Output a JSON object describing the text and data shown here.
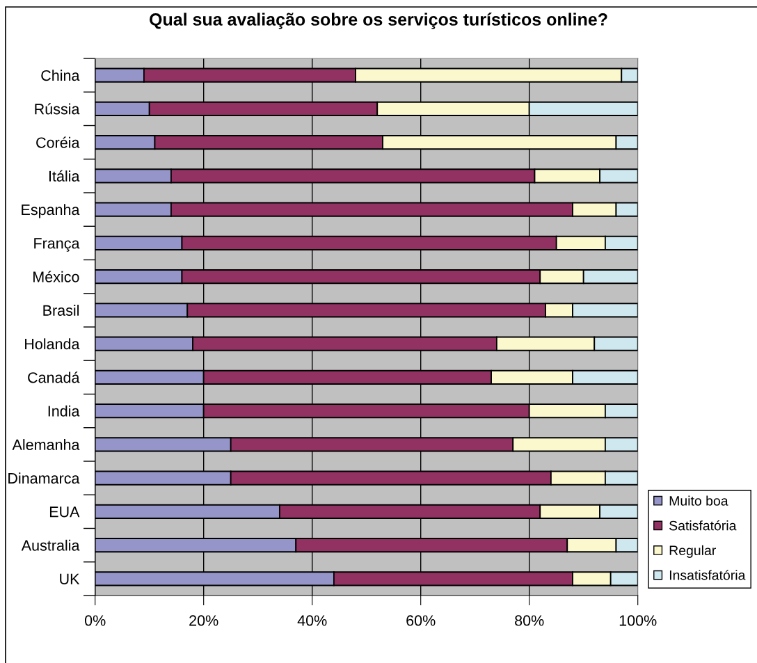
{
  "chart_data": {
    "type": "bar",
    "orientation": "horizontal",
    "stacked": true,
    "title": "Qual sua avaliação sobre os serviços turísticos online?",
    "categories": [
      "China",
      "Rússia",
      "Coréia",
      "Itália",
      "Espanha",
      "França",
      "México",
      "Brasil",
      "Holanda",
      "Canadá",
      "India",
      "Alemanha",
      "Dinamarca",
      "EUA",
      "Australia",
      "UK"
    ],
    "series": [
      {
        "name": "Muito boa",
        "color": "#9595c9",
        "values": [
          9,
          10,
          11,
          14,
          14,
          16,
          16,
          17,
          18,
          20,
          20,
          25,
          25,
          34,
          37,
          44
        ]
      },
      {
        "name": "Satisfatória",
        "color": "#923262",
        "values": [
          39,
          42,
          42,
          67,
          74,
          69,
          66,
          66,
          56,
          53,
          60,
          52,
          59,
          48,
          50,
          44
        ]
      },
      {
        "name": "Regular",
        "color": "#fbf8cd",
        "values": [
          49,
          28,
          43,
          12,
          8,
          9,
          8,
          5,
          18,
          15,
          14,
          17,
          10,
          11,
          9,
          7
        ]
      },
      {
        "name": "Insatisfatória",
        "color": "#cfe8ef",
        "values": [
          3,
          20,
          4,
          7,
          4,
          6,
          10,
          12,
          8,
          12,
          6,
          6,
          6,
          7,
          4,
          5
        ]
      }
    ],
    "xlim": [
      0,
      100
    ],
    "xticks": [
      {
        "value": 0,
        "label": "0%"
      },
      {
        "value": 20,
        "label": "20%"
      },
      {
        "value": 40,
        "label": "40%"
      },
      {
        "value": 60,
        "label": "60%"
      },
      {
        "value": 80,
        "label": "80%"
      },
      {
        "value": 100,
        "label": "100%"
      }
    ],
    "grid": "x",
    "legend": "right"
  }
}
